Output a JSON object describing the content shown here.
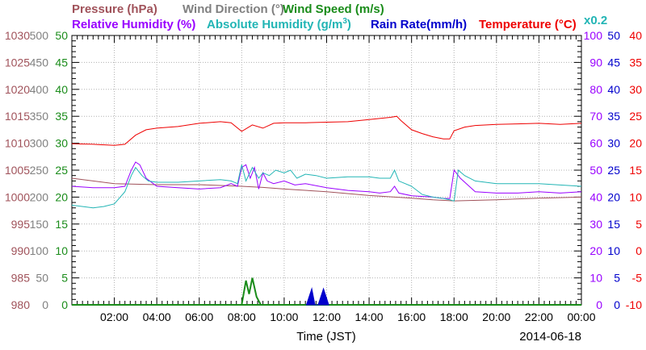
{
  "chart_data": {
    "type": "line",
    "xlabel": "Time (JST)",
    "date": "2014-06-18",
    "x_ticks": [
      "02:00",
      "04:00",
      "06:00",
      "08:00",
      "10:00",
      "12:00",
      "14:00",
      "16:00",
      "18:00",
      "20:00",
      "22:00",
      "00:00"
    ],
    "xlim": [
      0,
      24
    ],
    "grid": true,
    "scale_note": "x0.2",
    "legend": {
      "row1": [
        "Pressure (hPa)",
        "Wind Direction (°)",
        "Wind Speed (m/s)"
      ],
      "row2": [
        "Relative Humidity (%)",
        "Absolute Humidity (g/m",
        "Rain Rate(mm/h)",
        "Temperature (°C)"
      ],
      "abs_hum_sup": "3",
      "abs_hum_close": ")"
    },
    "axes": {
      "pressure": {
        "color": "#a0525a",
        "range": [
          980,
          1030
        ],
        "ticks": [
          "1030",
          "1025",
          "1020",
          "1015",
          "1010",
          "1005",
          "1000",
          "995",
          "990",
          "985",
          "980"
        ]
      },
      "wind_direction": {
        "color": "#808080",
        "range": [
          0,
          500
        ],
        "ticks": [
          "500",
          "450",
          "400",
          "350",
          "300",
          "250",
          "200",
          "150",
          "100",
          "50",
          "0"
        ]
      },
      "wind_speed": {
        "color": "#1a8c1a",
        "range": [
          0,
          50
        ],
        "ticks": [
          "50",
          "45",
          "40",
          "35",
          "30",
          "25",
          "20",
          "15",
          "10",
          "5",
          "0"
        ]
      },
      "relative_humidity": {
        "color": "#9900ff",
        "range": [
          0,
          100
        ],
        "ticks": [
          "100",
          "90",
          "80",
          "70",
          "60",
          "50",
          "40",
          "30",
          "20",
          "10",
          "0"
        ]
      },
      "rain_rate": {
        "color": "#0000cc",
        "range": [
          0,
          50
        ],
        "ticks": [
          "50",
          "45",
          "40",
          "35",
          "30",
          "25",
          "20",
          "15",
          "10",
          "5",
          "0"
        ]
      },
      "temperature": {
        "color": "#ee0000",
        "range": [
          -10,
          40
        ],
        "ticks": [
          "40",
          "35",
          "30",
          "25",
          "20",
          "15",
          "10",
          "5",
          "0",
          "-5",
          "-10"
        ]
      }
    },
    "series": [
      {
        "name": "Pressure (hPa)",
        "color": "#a0525a",
        "axis": "pressure",
        "x": [
          0,
          2,
          4,
          6,
          8,
          9,
          10,
          12,
          14,
          16,
          17,
          18,
          20,
          22,
          24
        ],
        "y": [
          1003.5,
          1002.5,
          1002.3,
          1002.3,
          1002.0,
          1001.8,
          1001.5,
          1001.0,
          1000.3,
          999.8,
          999.5,
          999.3,
          999.5,
          999.8,
          1000.0
        ]
      },
      {
        "name": "Temperature (°C)",
        "color": "#ee0000",
        "axis": "temperature",
        "x": [
          0,
          1,
          2,
          2.5,
          3,
          3.5,
          4,
          5,
          6,
          7,
          7.5,
          8,
          8.5,
          9,
          9.5,
          10,
          11,
          12,
          13,
          14,
          15,
          15.3,
          15.5,
          16,
          16.5,
          17,
          17.5,
          17.8,
          18,
          18.5,
          19,
          20,
          21,
          22,
          23,
          24
        ],
        "y": [
          19.9,
          19.8,
          19.6,
          19.8,
          21.5,
          22.5,
          22.8,
          23.1,
          23.7,
          24.0,
          23.8,
          22.2,
          23.4,
          22.8,
          23.7,
          23.8,
          23.8,
          23.9,
          24.0,
          24.4,
          24.8,
          25.0,
          24.2,
          22.5,
          21.8,
          21.2,
          20.8,
          20.8,
          22.3,
          23.0,
          23.3,
          23.5,
          23.6,
          23.7,
          23.5,
          23.7
        ]
      },
      {
        "name": "Relative Humidity (%)",
        "color": "#9900ff",
        "axis": "relative_humidity",
        "x": [
          0,
          1,
          2,
          2.5,
          2.8,
          3,
          3.2,
          3.5,
          4,
          5,
          6,
          7,
          7.5,
          7.8,
          8,
          8.2,
          8.4,
          8.6,
          8.8,
          9,
          9.2,
          9.5,
          10,
          10.5,
          11,
          12,
          13,
          14,
          14.5,
          15,
          15.2,
          15.4,
          16,
          17,
          17.5,
          17.8,
          18,
          18.3,
          19,
          20,
          21,
          22,
          23,
          24
        ],
        "y": [
          44,
          43.5,
          43.5,
          44,
          50,
          53,
          52,
          47,
          44,
          43.5,
          43,
          43.5,
          45,
          44,
          51,
          52,
          47,
          51,
          43,
          49,
          46,
          45,
          46,
          44.5,
          45,
          43.5,
          42.5,
          42,
          41.5,
          42,
          44,
          41.5,
          40.5,
          40,
          39.5,
          39.5,
          50,
          47,
          42,
          41.5,
          41.5,
          42,
          41.5,
          42
        ]
      },
      {
        "name": "Absolute Humidity (g/m3)",
        "color": "#22b5b5",
        "axis": "relative_humidity",
        "x": [
          0,
          1,
          1.5,
          2,
          2.5,
          2.8,
          3,
          3.3,
          3.6,
          4,
          5,
          6,
          7,
          7.5,
          7.8,
          8,
          8.2,
          8.5,
          8.8,
          9,
          9.3,
          9.6,
          10,
          10.3,
          10.6,
          11,
          11.5,
          12,
          13,
          14,
          14.5,
          15,
          15.2,
          15.4,
          16,
          16.5,
          17,
          17.5,
          17.8,
          18,
          18.2,
          18.5,
          19,
          20,
          21,
          22,
          23,
          24
        ],
        "y": [
          37,
          36,
          36.5,
          37.5,
          42,
          48,
          51,
          48,
          46,
          45.5,
          45.5,
          46,
          46.5,
          46,
          45,
          52,
          46,
          51,
          47,
          49,
          48,
          50,
          49,
          50,
          47,
          48.5,
          48,
          47,
          47.5,
          47.5,
          47,
          47,
          50,
          46,
          44,
          41,
          40,
          39.5,
          39,
          38.5,
          50,
          48,
          46,
          45,
          45,
          45,
          44.5,
          44
        ]
      },
      {
        "name": "Wind Speed (m/s)",
        "color": "#1a8c1a",
        "axis": "wind_speed",
        "x": [
          0,
          24
        ],
        "y": [
          0,
          0
        ]
      },
      {
        "name": "Rain Rate(mm/h)",
        "color": "#0000cc",
        "axis": "rain_rate",
        "type": "area",
        "x": [
          11.05,
          11.3,
          11.45,
          11.6,
          11.85,
          12.1
        ],
        "y": [
          0,
          3,
          0,
          0,
          3,
          0
        ]
      },
      {
        "name": "Wind Speed (m/s) gusts",
        "color": "#1a8c1a",
        "axis": "wind_speed",
        "x": [
          8.0,
          8.2,
          8.35,
          8.5,
          8.7,
          8.9
        ],
        "y": [
          0,
          4.5,
          2,
          5,
          1.5,
          0
        ]
      }
    ]
  }
}
